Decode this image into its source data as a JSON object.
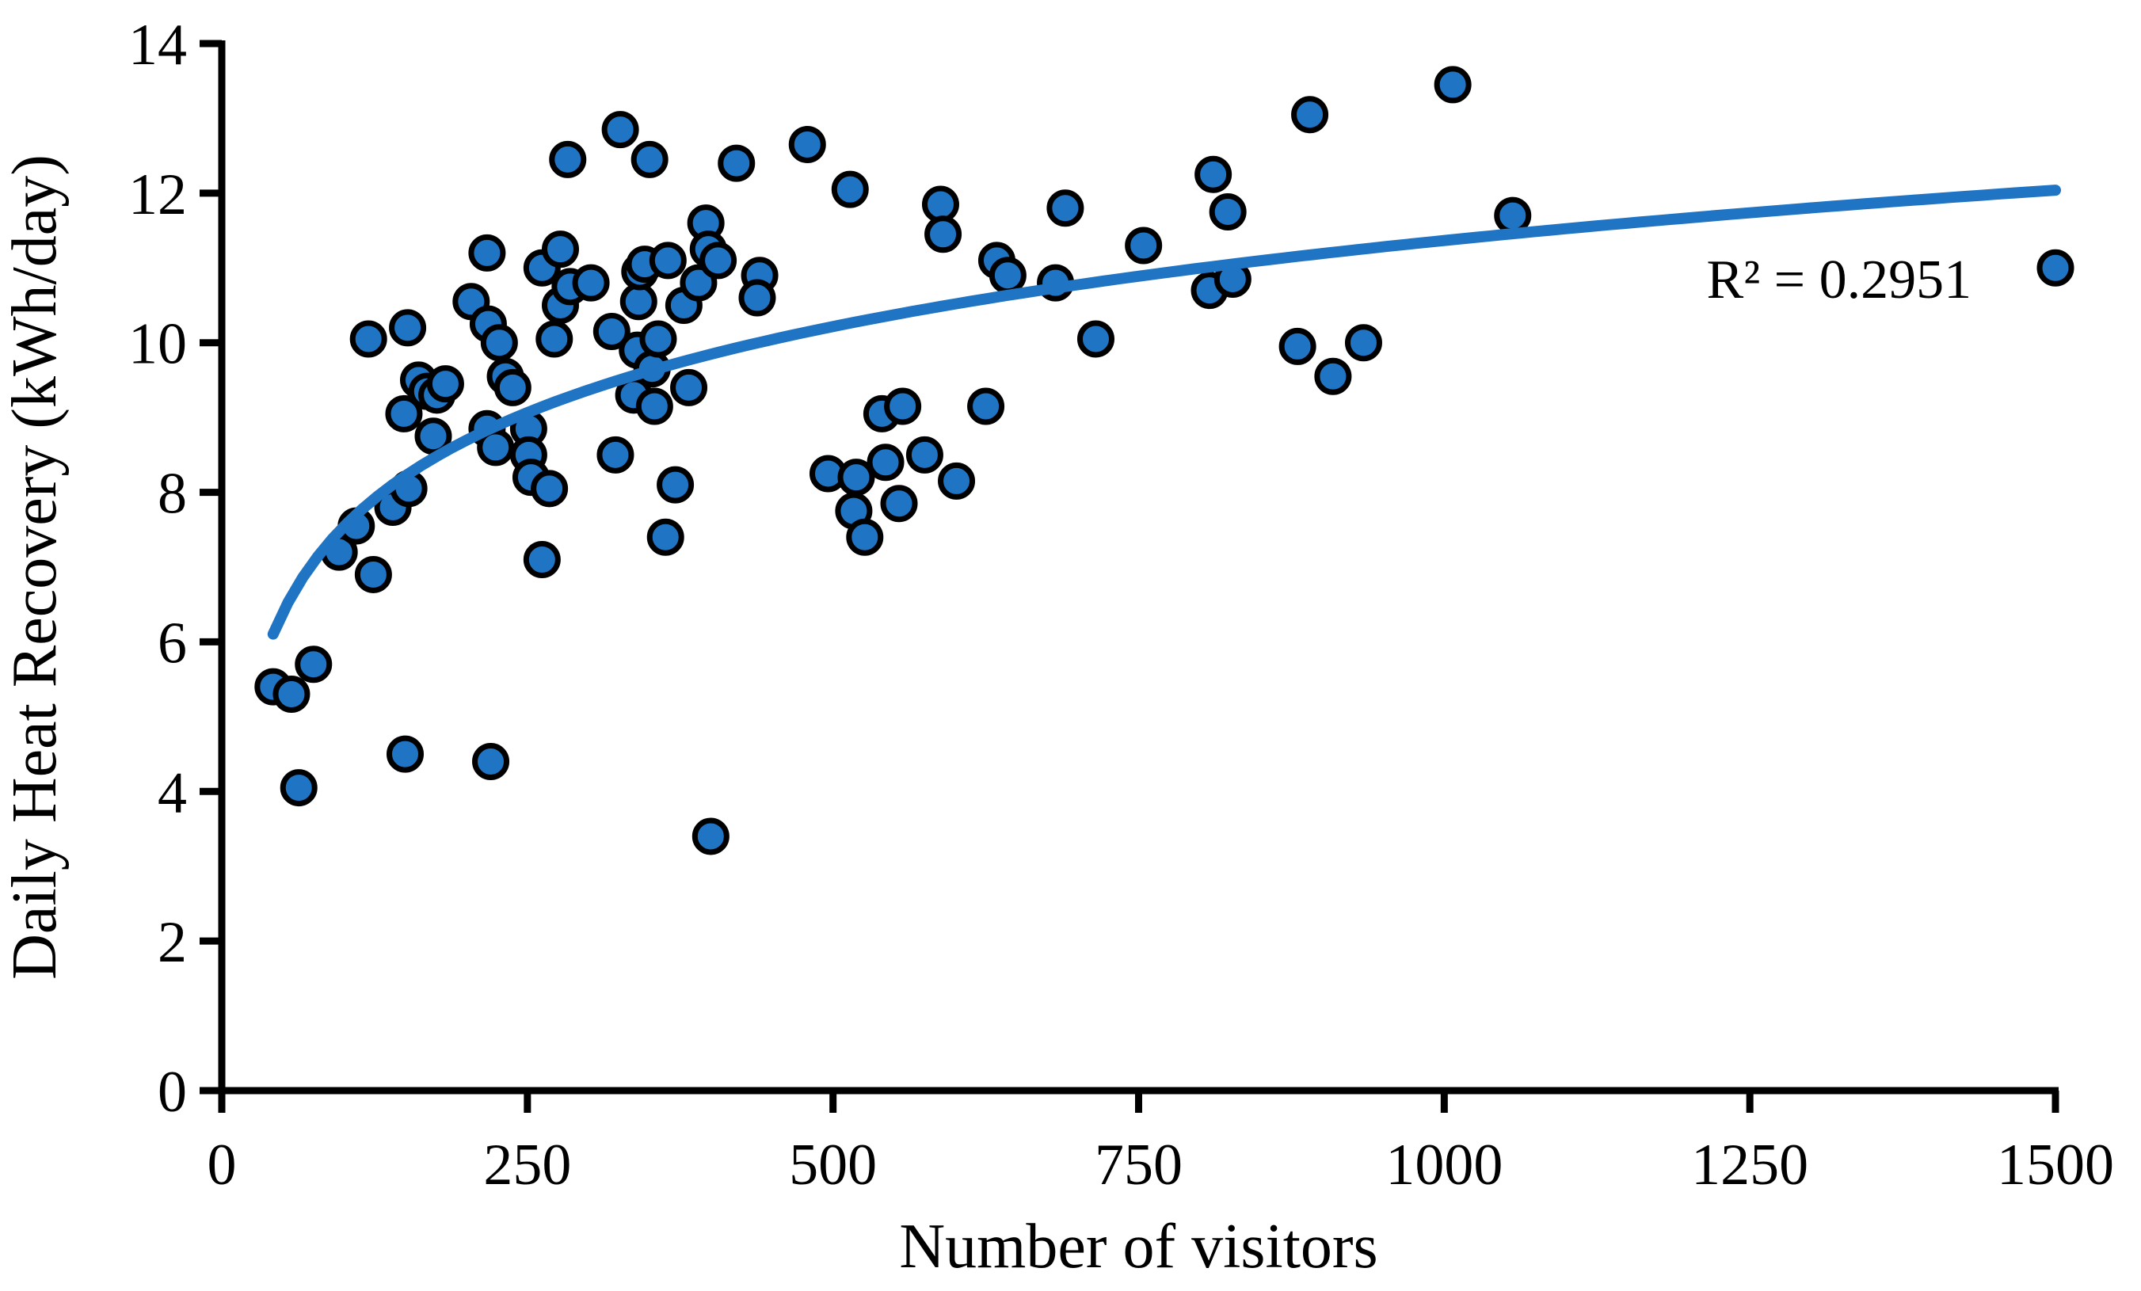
{
  "chart_data": {
    "type": "scatter",
    "title": "",
    "xlabel": "Number of visitors",
    "ylabel": "Daily Heat Recovery (kWh/day)",
    "xlim": [
      0,
      1500
    ],
    "ylim": [
      0,
      14
    ],
    "x_ticks": [
      0,
      250,
      500,
      750,
      1000,
      1250,
      1500
    ],
    "y_ticks": [
      0,
      2,
      4,
      6,
      8,
      10,
      12,
      14
    ],
    "grid": false,
    "legend": "none",
    "annotation": {
      "text": "R² = 0.2951",
      "x": 1323,
      "y": 10.6
    },
    "trendline": {
      "type": "logarithmic",
      "a": 1.66,
      "b": -0.1,
      "x_start": 42,
      "x_end": 1500,
      "r_squared": 0.2951
    },
    "marker": {
      "fill": "#2074C4",
      "stroke": "#000000",
      "radius_px": 20,
      "stroke_width_px": 7
    },
    "colors": {
      "trendline": "#2074C4",
      "axis": "#000000",
      "text": "#000000",
      "background": "#FFFFFF"
    },
    "points": [
      [
        42,
        5.4
      ],
      [
        57,
        5.3
      ],
      [
        75,
        5.7
      ],
      [
        63,
        4.05
      ],
      [
        150,
        4.5
      ],
      [
        220,
        4.4
      ],
      [
        400,
        3.4
      ],
      [
        96,
        7.2
      ],
      [
        110,
        7.55
      ],
      [
        124,
        6.9
      ],
      [
        140,
        7.8
      ],
      [
        120,
        10.05
      ],
      [
        152,
        10.2
      ],
      [
        149,
        9.05
      ],
      [
        153,
        8.05
      ],
      [
        161,
        9.5
      ],
      [
        168,
        9.35
      ],
      [
        176,
        9.3
      ],
      [
        183,
        9.45
      ],
      [
        173,
        8.75
      ],
      [
        204,
        10.55
      ],
      [
        217,
        11.2
      ],
      [
        218,
        10.25
      ],
      [
        227,
        10.0
      ],
      [
        232,
        9.55
      ],
      [
        238,
        9.4
      ],
      [
        217,
        8.85
      ],
      [
        224,
        8.6
      ],
      [
        251,
        8.85
      ],
      [
        251,
        8.5
      ],
      [
        253,
        8.2
      ],
      [
        268,
        8.05
      ],
      [
        262,
        7.1
      ],
      [
        262,
        11.0
      ],
      [
        272,
        10.05
      ],
      [
        277,
        11.25
      ],
      [
        277,
        10.5
      ],
      [
        283,
        12.45
      ],
      [
        285,
        10.75
      ],
      [
        302,
        10.8
      ],
      [
        319,
        10.15
      ],
      [
        326,
        12.85
      ],
      [
        340,
        9.9
      ],
      [
        352,
        9.65
      ],
      [
        357,
        10.05
      ],
      [
        341,
        10.55
      ],
      [
        342,
        10.95
      ],
      [
        346,
        11.05
      ],
      [
        350,
        12.45
      ],
      [
        365,
        11.1
      ],
      [
        337,
        9.3
      ],
      [
        354,
        9.15
      ],
      [
        322,
        8.5
      ],
      [
        371,
        8.1
      ],
      [
        363,
        7.4
      ],
      [
        378,
        10.5
      ],
      [
        390,
        10.8
      ],
      [
        382,
        9.4
      ],
      [
        396,
        11.6
      ],
      [
        398,
        11.25
      ],
      [
        406,
        11.1
      ],
      [
        421,
        12.4
      ],
      [
        440,
        10.9
      ],
      [
        438,
        10.6
      ],
      [
        479,
        12.65
      ],
      [
        514,
        12.05
      ],
      [
        496,
        8.25
      ],
      [
        519,
        8.2
      ],
      [
        517,
        7.75
      ],
      [
        526,
        7.4
      ],
      [
        540,
        9.05
      ],
      [
        557,
        9.15
      ],
      [
        543,
        8.4
      ],
      [
        554,
        7.85
      ],
      [
        575,
        8.5
      ],
      [
        601,
        8.15
      ],
      [
        625,
        9.15
      ],
      [
        588,
        11.85
      ],
      [
        590,
        11.45
      ],
      [
        634,
        11.1
      ],
      [
        643,
        10.9
      ],
      [
        682,
        10.8
      ],
      [
        690,
        11.8
      ],
      [
        715,
        10.05
      ],
      [
        754,
        11.3
      ],
      [
        808,
        10.7
      ],
      [
        827,
        10.85
      ],
      [
        811,
        12.25
      ],
      [
        823,
        11.75
      ],
      [
        880,
        9.95
      ],
      [
        909,
        9.55
      ],
      [
        934,
        10.0
      ],
      [
        890,
        13.05
      ],
      [
        1007,
        13.45
      ],
      [
        1056,
        11.7
      ],
      [
        1500,
        11.0
      ]
    ]
  }
}
